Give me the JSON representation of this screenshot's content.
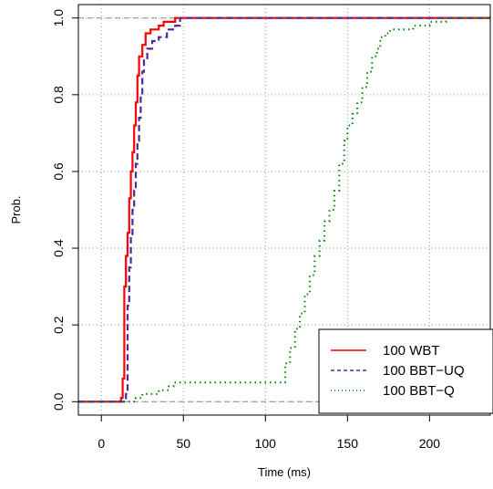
{
  "chart_data": {
    "type": "line",
    "subtype": "ecdf-step",
    "title": "",
    "xlabel": "Time (ms)",
    "ylabel": "Prob.",
    "xlim": [
      -14,
      237
    ],
    "ylim": [
      -0.035,
      1.035
    ],
    "x_ticks": [
      0,
      50,
      100,
      150,
      200
    ],
    "y_ticks": [
      0.0,
      0.2,
      0.4,
      0.6,
      0.8,
      1.0
    ],
    "grid": "dotted",
    "reference_lines": [
      0,
      1
    ],
    "legend_position": "bottom-right",
    "series": [
      {
        "name": "100 WBT",
        "color": "#ff0000",
        "style": "solid",
        "points": [
          [
            -14,
            0
          ],
          [
            11,
            0
          ],
          [
            12,
            0.01
          ],
          [
            13,
            0.06
          ],
          [
            14,
            0.3
          ],
          [
            15,
            0.38
          ],
          [
            16,
            0.44
          ],
          [
            17,
            0.53
          ],
          [
            18,
            0.6
          ],
          [
            19,
            0.65
          ],
          [
            20,
            0.72
          ],
          [
            21,
            0.78
          ],
          [
            22,
            0.85
          ],
          [
            23,
            0.9
          ],
          [
            25,
            0.93
          ],
          [
            27,
            0.96
          ],
          [
            30,
            0.97
          ],
          [
            35,
            0.98
          ],
          [
            38,
            0.99
          ],
          [
            45,
            1.0
          ],
          [
            237,
            1.0
          ]
        ]
      },
      {
        "name": "100 BBT−UQ",
        "color": "#4b2a9a",
        "style": "dashed",
        "points": [
          [
            -14,
            0
          ],
          [
            14,
            0
          ],
          [
            15,
            0.02
          ],
          [
            16,
            0.25
          ],
          [
            17,
            0.35
          ],
          [
            18,
            0.43
          ],
          [
            19,
            0.5
          ],
          [
            20,
            0.55
          ],
          [
            21,
            0.62
          ],
          [
            22,
            0.68
          ],
          [
            23,
            0.74
          ],
          [
            24,
            0.8
          ],
          [
            25,
            0.86
          ],
          [
            26,
            0.89
          ],
          [
            28,
            0.92
          ],
          [
            31,
            0.94
          ],
          [
            35,
            0.95
          ],
          [
            40,
            0.97
          ],
          [
            45,
            0.98
          ],
          [
            48,
            1.0
          ],
          [
            237,
            1.0
          ]
        ]
      },
      {
        "name": "100 BBT−Q",
        "color": "#008000",
        "style": "dotted",
        "points": [
          [
            -14,
            0
          ],
          [
            20,
            0
          ],
          [
            21,
            0.01
          ],
          [
            25,
            0.02
          ],
          [
            35,
            0.03
          ],
          [
            41,
            0.04
          ],
          [
            44,
            0.05
          ],
          [
            110,
            0.05
          ],
          [
            112,
            0.1
          ],
          [
            115,
            0.14
          ],
          [
            118,
            0.19
          ],
          [
            121,
            0.23
          ],
          [
            124,
            0.28
          ],
          [
            127,
            0.33
          ],
          [
            130,
            0.38
          ],
          [
            133,
            0.42
          ],
          [
            136,
            0.47
          ],
          [
            139,
            0.5
          ],
          [
            142,
            0.55
          ],
          [
            145,
            0.62
          ],
          [
            148,
            0.68
          ],
          [
            150,
            0.72
          ],
          [
            153,
            0.75
          ],
          [
            156,
            0.78
          ],
          [
            159,
            0.82
          ],
          [
            162,
            0.86
          ],
          [
            165,
            0.9
          ],
          [
            168,
            0.92
          ],
          [
            170,
            0.95
          ],
          [
            173,
            0.96
          ],
          [
            176,
            0.97
          ],
          [
            190,
            0.98
          ],
          [
            200,
            0.99
          ],
          [
            210,
            1.0
          ],
          [
            237,
            1.0
          ]
        ]
      }
    ]
  }
}
